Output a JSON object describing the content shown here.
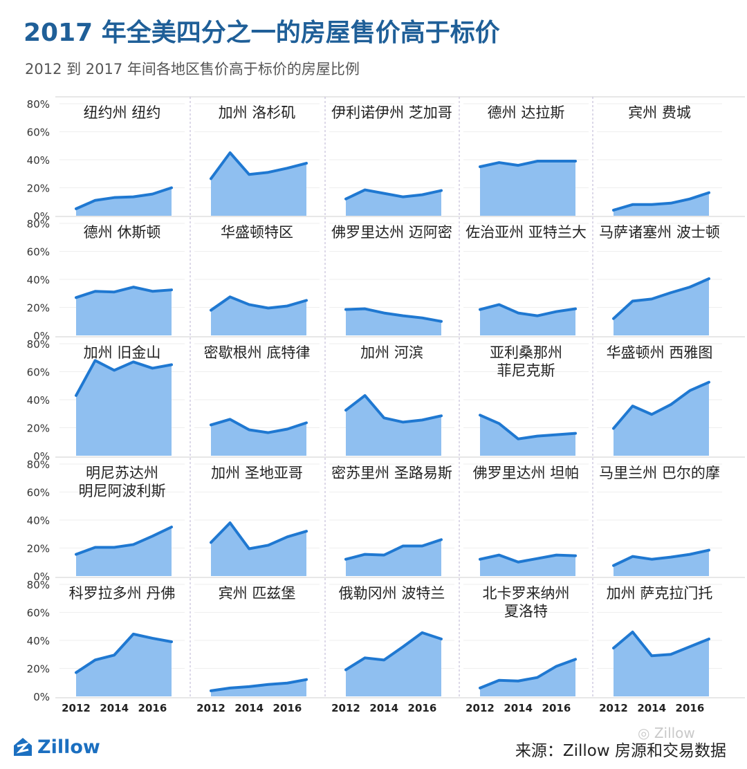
{
  "title": "2017 年全美四分之一的房屋售价高于标价",
  "subtitle": "2012 到 2017 年间各地区售价高于标价的房屋比例",
  "logo": {
    "text": "Zillow",
    "icon": "zillow-house-icon"
  },
  "source": "来源：Zillow 房源和交易数据",
  "watermark": "Zillow",
  "colors": {
    "line": "#1f78d1",
    "fill": "#8fbff0",
    "title": "#1f5f98",
    "grid": "#d6d6d6"
  },
  "chart_data": {
    "type": "area",
    "layout": "small-multiples 5x5",
    "x": [
      2012,
      2013,
      2014,
      2015,
      2016,
      2017
    ],
    "x_tick_labels": [
      "2012",
      "2014",
      "2016"
    ],
    "y_tick_labels": [
      "0%",
      "20%",
      "40%",
      "60%",
      "80%"
    ],
    "ylim": [
      0,
      80
    ],
    "y_unit": "%",
    "series": [
      {
        "name": "纽约州 纽约",
        "values": [
          5,
          11,
          13,
          13.5,
          15.5,
          20
        ]
      },
      {
        "name": "加州 洛杉矶",
        "values": [
          26.5,
          45,
          29.5,
          31,
          34,
          37.5
        ]
      },
      {
        "name": "伊利诺伊州 芝加哥",
        "values": [
          12,
          18.5,
          16,
          13.5,
          15,
          18
        ]
      },
      {
        "name": "德州 达拉斯",
        "values": [
          35,
          38,
          36,
          39,
          39,
          39
        ]
      },
      {
        "name": "宾州 费城",
        "values": [
          4,
          8,
          8,
          9,
          12,
          16.5
        ]
      },
      {
        "name": "德州 休斯顿",
        "values": [
          27,
          31.5,
          31,
          34.5,
          31.5,
          32.5
        ]
      },
      {
        "name": "华盛顿特区",
        "values": [
          18,
          27.5,
          22,
          19.5,
          21,
          25
        ]
      },
      {
        "name": "佛罗里达州 迈阿密",
        "values": [
          18.5,
          19,
          16,
          14,
          12.5,
          10
        ]
      },
      {
        "name": "佐治亚州 亚特兰大",
        "values": [
          18.5,
          22,
          16,
          14,
          17,
          19
        ]
      },
      {
        "name": "马萨诸塞州 波士顿",
        "values": [
          12,
          24.5,
          26,
          30.5,
          34.5,
          40.5
        ]
      },
      {
        "name": "加州 旧金山",
        "values": [
          43,
          68,
          61,
          67,
          62.5,
          65
        ]
      },
      {
        "name": "密歇根州 底特律",
        "values": [
          22,
          26,
          18.5,
          16.5,
          19,
          23.5
        ]
      },
      {
        "name": "加州 河滨",
        "values": [
          32.5,
          43,
          27,
          24,
          25.5,
          28.5
        ]
      },
      {
        "name": "亚利桑那州 菲尼克斯",
        "values": [
          29,
          23,
          12,
          14,
          15,
          16
        ]
      },
      {
        "name": "华盛顿州 西雅图",
        "values": [
          19.5,
          35.5,
          29.5,
          36.5,
          46.5,
          52.5
        ]
      },
      {
        "name": "明尼苏达州 明尼阿波利斯",
        "values": [
          15.5,
          20.5,
          20.5,
          22.5,
          28.5,
          35
        ]
      },
      {
        "name": "加州 圣地亚哥",
        "values": [
          24,
          38,
          19.5,
          22,
          28,
          32
        ]
      },
      {
        "name": "密苏里州 圣路易斯",
        "values": [
          12,
          15.5,
          15,
          21.5,
          21.5,
          26
        ]
      },
      {
        "name": "佛罗里达州 坦帕",
        "values": [
          12,
          15,
          10,
          12.5,
          15,
          14.5
        ]
      },
      {
        "name": "马里兰州 巴尔的摩",
        "values": [
          7.5,
          14,
          12,
          13.5,
          15.5,
          18.5
        ]
      },
      {
        "name": "科罗拉多州 丹佛",
        "values": [
          17,
          26,
          29.5,
          44.5,
          41.5,
          39
        ]
      },
      {
        "name": "宾州 匹兹堡",
        "values": [
          4,
          6,
          7,
          8.5,
          9.5,
          12
        ]
      },
      {
        "name": "俄勒冈州 波特兰",
        "values": [
          19,
          27.5,
          26,
          35.5,
          45.5,
          41
        ]
      },
      {
        "name": "北卡罗来纳州 夏洛特",
        "values": [
          6,
          11.5,
          11,
          13.5,
          21.5,
          26.5
        ]
      },
      {
        "name": "加州 萨克拉门托",
        "values": [
          34.5,
          46,
          29,
          30,
          35.5,
          41
        ]
      }
    ],
    "panel_titles": [
      [
        "纽约州 纽约"
      ],
      [
        "加州 洛杉矶"
      ],
      [
        "伊利诺伊州 芝加哥"
      ],
      [
        "德州 达拉斯"
      ],
      [
        "宾州 费城"
      ],
      [
        "德州 休斯顿"
      ],
      [
        "华盛顿特区"
      ],
      [
        "佛罗里达州 迈阿密"
      ],
      [
        "佐治亚州 亚特兰大"
      ],
      [
        "马萨诸塞州 波士顿"
      ],
      [
        "加州 旧金山"
      ],
      [
        "密歇根州 底特律"
      ],
      [
        "加州 河滨"
      ],
      [
        "亚利桑那州",
        "菲尼克斯"
      ],
      [
        "华盛顿州 西雅图"
      ],
      [
        "明尼苏达州",
        "明尼阿波利斯"
      ],
      [
        "加州 圣地亚哥"
      ],
      [
        "密苏里州 圣路易斯"
      ],
      [
        "佛罗里达州 坦帕"
      ],
      [
        "马里兰州 巴尔的摩"
      ],
      [
        "科罗拉多州 丹佛"
      ],
      [
        "宾州 匹兹堡"
      ],
      [
        "俄勒冈州 波特兰"
      ],
      [
        "北卡罗来纳州",
        "夏洛特"
      ],
      [
        "加州 萨克拉门托"
      ]
    ]
  }
}
